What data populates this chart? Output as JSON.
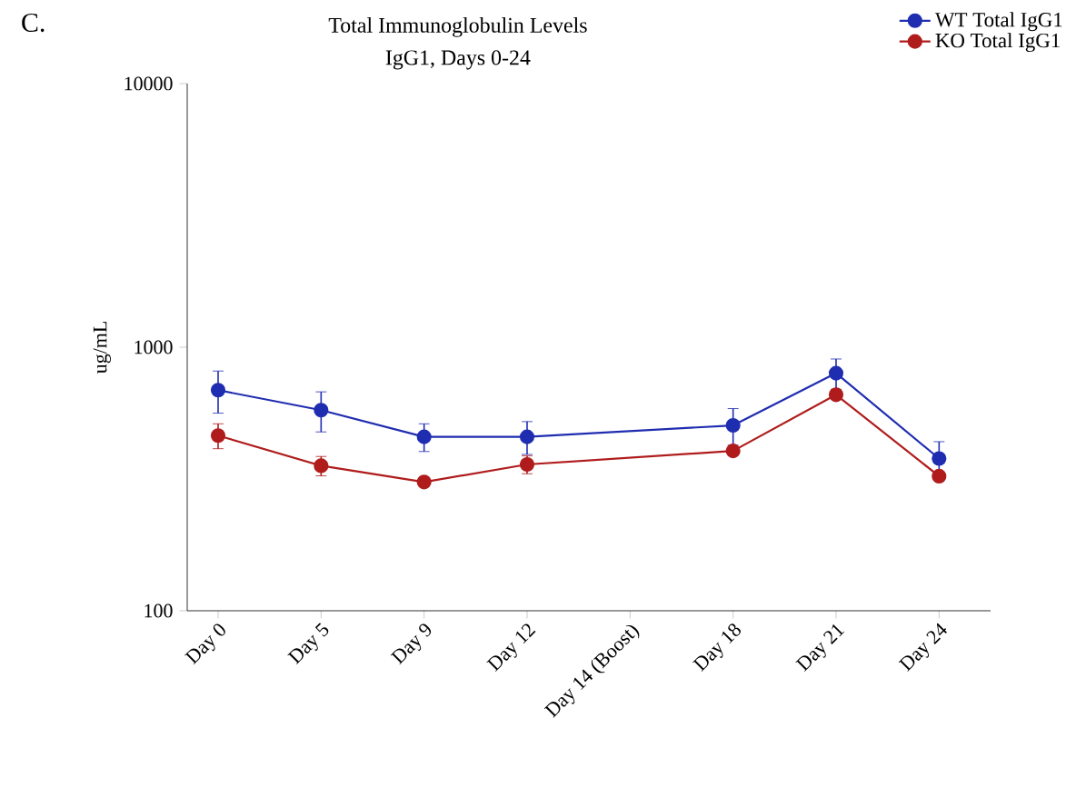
{
  "chart_data": {
    "type": "line",
    "title": "Total Immunoglobulin Levels",
    "subtitle": "IgG1, Days 0-24",
    "ylabel": "ug/mL",
    "annotations": [
      "C."
    ],
    "categories": [
      "Day 0",
      "Day 5",
      "Day 9",
      "Day 12",
      "Day 14 (Boost)",
      "Day 18",
      "Day 21",
      "Day 24"
    ],
    "ylim": [
      100,
      10000
    ],
    "yticks": [
      100,
      1000,
      10000
    ],
    "log": "y",
    "series": [
      {
        "name": "WT Total IgG1",
        "color": "#1f2db0",
        "values": [
          687,
          577,
          457,
          457,
          null,
          505,
          797,
          378
        ],
        "errors": [
          125,
          100,
          55,
          65,
          null,
          80,
          105,
          60
        ]
      },
      {
        "name": "KO Total IgG1",
        "color": "#b01c1c",
        "values": [
          462,
          355,
          308,
          359,
          null,
          404,
          660,
          324
        ],
        "errors": [
          50,
          30,
          null,
          28,
          null,
          null,
          null,
          null
        ]
      }
    ],
    "legend": "top right",
    "marker": "circle",
    "line_style": "solid",
    "grid": false
  }
}
